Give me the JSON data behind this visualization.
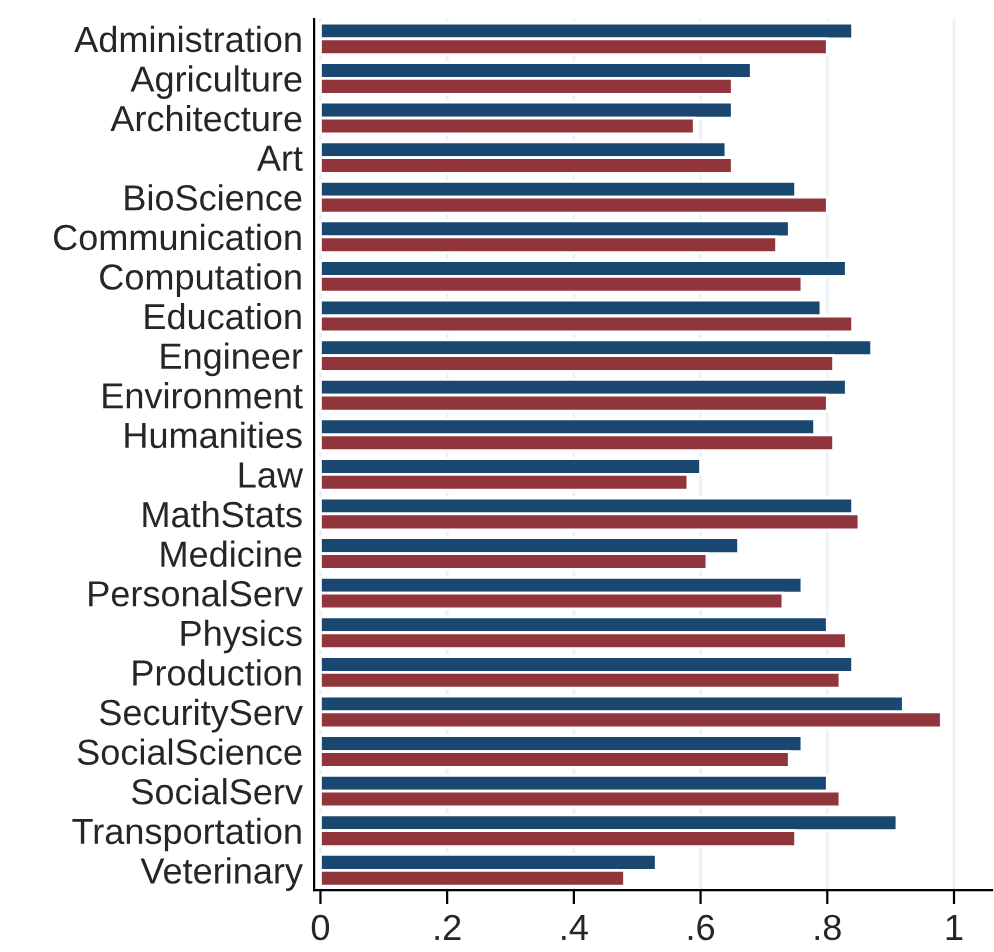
{
  "chart_data": {
    "type": "bar",
    "orientation": "horizontal",
    "categories": [
      "Administration",
      "Agriculture",
      "Architecture",
      "Art",
      "BioScience",
      "Communication",
      "Computation",
      "Education",
      "Engineer",
      "Environment",
      "Humanities",
      "Law",
      "MathStats",
      "Medicine",
      "PersonalServ",
      "Physics",
      "Production",
      "SecurityServ",
      "SocialScience",
      "SocialServ",
      "Transportation",
      "Veterinary"
    ],
    "series": [
      {
        "color": "#1a476f",
        "values": [
          0.84,
          0.68,
          0.65,
          0.64,
          0.75,
          0.74,
          0.83,
          0.79,
          0.87,
          0.83,
          0.78,
          0.6,
          0.84,
          0.66,
          0.76,
          0.8,
          0.84,
          0.92,
          0.76,
          0.8,
          0.91,
          0.53
        ]
      },
      {
        "color": "#90353b",
        "values": [
          0.8,
          0.65,
          0.59,
          0.65,
          0.8,
          0.72,
          0.76,
          0.84,
          0.81,
          0.8,
          0.81,
          0.58,
          0.85,
          0.61,
          0.73,
          0.83,
          0.82,
          0.98,
          0.74,
          0.82,
          0.75,
          0.48
        ]
      }
    ],
    "xlim": [
      -0.01,
      1.06
    ],
    "xticks": [
      0,
      {
        "value": 0.2,
        "label": ".2"
      },
      {
        "value": 0.4,
        "label": ".4"
      },
      {
        "value": 0.6,
        "label": ".6"
      },
      {
        "value": 0.8,
        "label": ".8"
      },
      1
    ],
    "grid": "x"
  }
}
